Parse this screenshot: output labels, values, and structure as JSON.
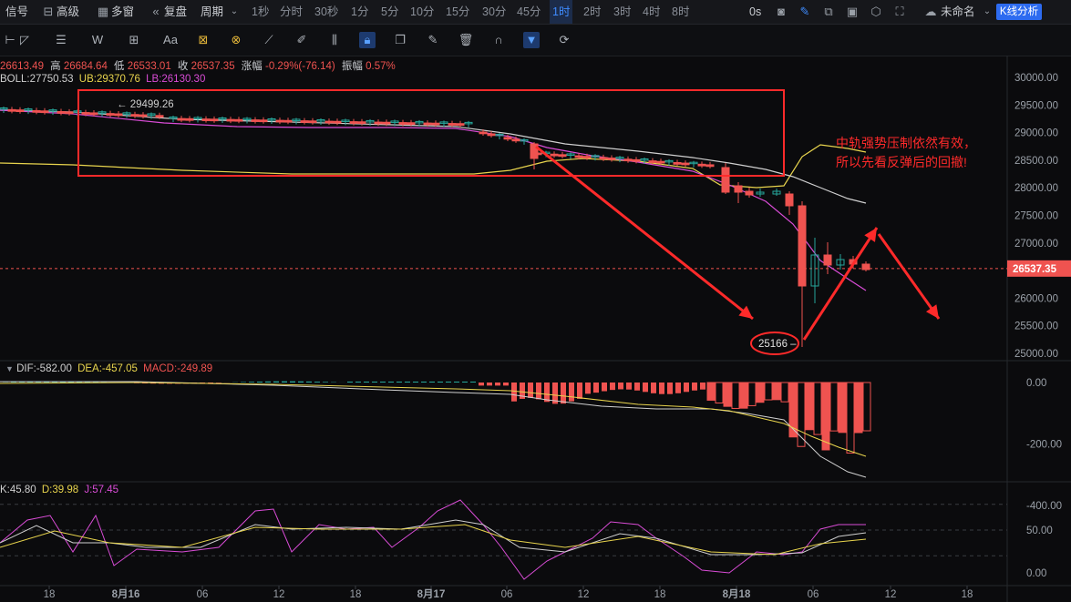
{
  "topbar": {
    "signal": "信号",
    "advanced": "高级",
    "multi_window": "多窗",
    "replay": "复盘",
    "period": "周期",
    "intervals": [
      "1秒",
      "分时",
      "30秒",
      "1分",
      "5分",
      "10分",
      "15分",
      "30分",
      "45分",
      "1时",
      "2时",
      "3时",
      "4时",
      "8时"
    ],
    "active_interval": "1时",
    "countdown": "0s",
    "layout_name": "未命名",
    "analysis_button": "K线分析"
  },
  "ohlc": {
    "open": "26613.49",
    "high_label": "高",
    "high": "26684.64",
    "low_label": "低",
    "low": "26533.01",
    "close_label": "收",
    "close": "26537.35",
    "change_label": "涨幅",
    "change": "-0.29%(-76.14)",
    "amp_label": "振幅",
    "amp": "0.57%"
  },
  "boll": {
    "label": "BOLL:27750.53",
    "ub": "UB:29370.76",
    "lb": "LB:26130.30"
  },
  "macd": {
    "dif": "DIF:-582.00",
    "dea": "DEA:-457.05",
    "macd": "MACD:-249.89"
  },
  "kdj": {
    "k": "K:45.80",
    "d": "D:39.98",
    "j": "J:57.45"
  },
  "price_axis": [
    "30000.00",
    "29500.00",
    "29000.00",
    "28500.00",
    "28000.00",
    "27500.00",
    "27000.00",
    "26500.00",
    "26000.00",
    "25500.00",
    "25000.00"
  ],
  "current_price": "26537.35",
  "macd_axis": [
    "0.00",
    "-200.00",
    "-400.00"
  ],
  "kdj_axis": [
    "50.00",
    "0.00"
  ],
  "time_axis": [
    "18",
    "8月16",
    "06",
    "12",
    "18",
    "8月17",
    "06",
    "12",
    "18",
    "8月18",
    "06",
    "12",
    "18"
  ],
  "annotations": {
    "high_marker": "29499.26",
    "low_marker": "25166",
    "note_line1": "中轨强势压制依然有效，",
    "note_line2": "所以先看反弹后的回撤!"
  },
  "colors": {
    "up": "#26a69a",
    "down": "#ef5350",
    "ub": "#e8d44d",
    "lb": "#d94cd6",
    "mid": "#cfcfcf",
    "annot": "#ff2a2a",
    "accent": "#2d6bf0"
  },
  "chart_data": {
    "type": "candlestick",
    "series": [
      {
        "name": "BOLL",
        "label": "BOLL:27750.53"
      },
      {
        "name": "UB",
        "label": "UB:29370.76"
      },
      {
        "name": "LB",
        "label": "LB:26130.30"
      }
    ],
    "ylim": [
      25000,
      30000
    ],
    "last": {
      "open": 26613.49,
      "high": 26684.64,
      "low": 26533.01,
      "close": 26537.35
    },
    "low_marker": 25166,
    "high_marker": 29499.26
  }
}
